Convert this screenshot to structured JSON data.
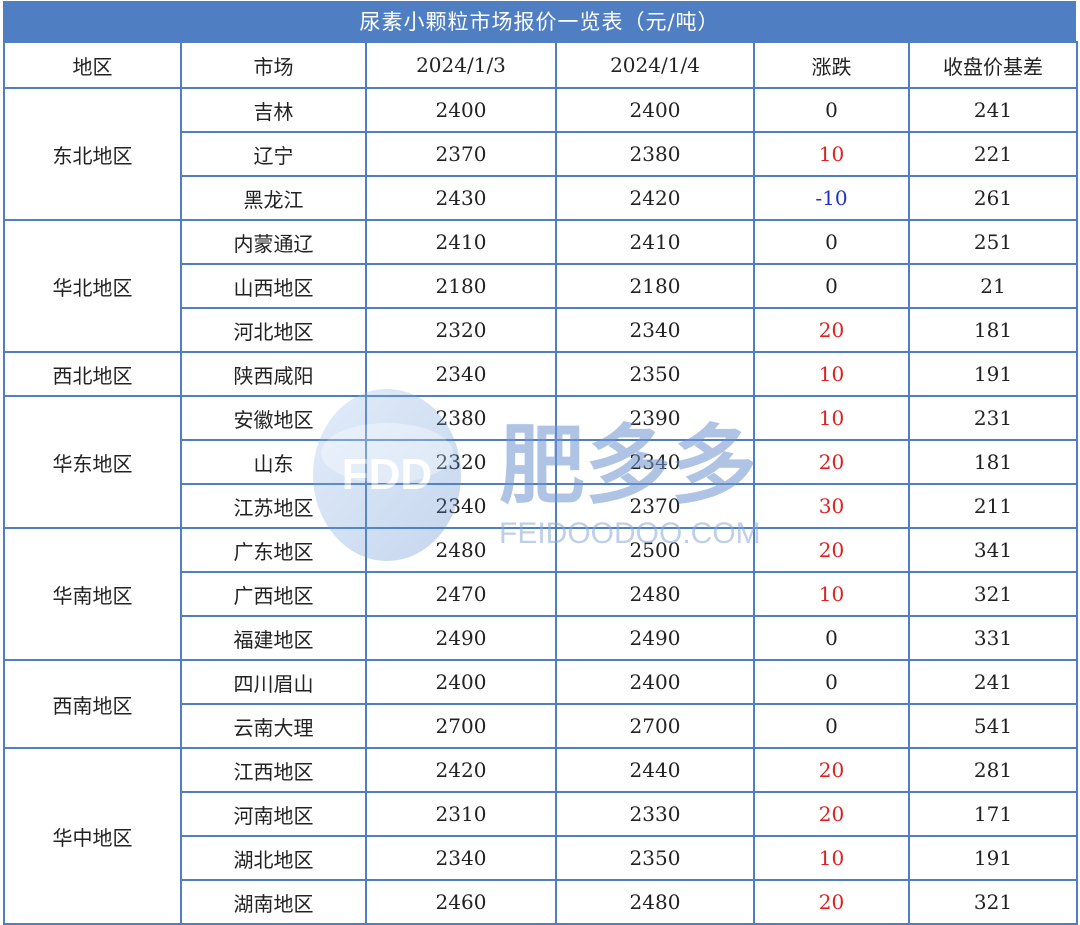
{
  "title": "尿素小颗粒市场报价一览表（元/吨）",
  "headers": [
    "地区",
    "市场",
    "2024/1/3",
    "2024/1/4",
    "涨跌",
    "收盘价基差"
  ],
  "groups": [
    {
      "region": "东北地区",
      "rows": [
        {
          "market": "吉林",
          "d1": "2400",
          "d2": "2400",
          "change": "0",
          "basis": "241"
        },
        {
          "market": "辽宁",
          "d1": "2370",
          "d2": "2380",
          "change": "10",
          "basis": "221"
        },
        {
          "market": "黑龙江",
          "d1": "2430",
          "d2": "2420",
          "change": "-10",
          "basis": "261"
        }
      ]
    },
    {
      "region": "华北地区",
      "rows": [
        {
          "market": "内蒙通辽",
          "d1": "2410",
          "d2": "2410",
          "change": "0",
          "basis": "251"
        },
        {
          "market": "山西地区",
          "d1": "2180",
          "d2": "2180",
          "change": "0",
          "basis": "21"
        },
        {
          "market": "河北地区",
          "d1": "2320",
          "d2": "2340",
          "change": "20",
          "basis": "181"
        }
      ]
    },
    {
      "region": "西北地区",
      "rows": [
        {
          "market": "陕西咸阳",
          "d1": "2340",
          "d2": "2350",
          "change": "10",
          "basis": "191"
        }
      ]
    },
    {
      "region": "华东地区",
      "rows": [
        {
          "market": "安徽地区",
          "d1": "2380",
          "d2": "2390",
          "change": "10",
          "basis": "231"
        },
        {
          "market": "山东",
          "d1": "2320",
          "d2": "2340",
          "change": "20",
          "basis": "181"
        },
        {
          "market": "江苏地区",
          "d1": "2340",
          "d2": "2370",
          "change": "30",
          "basis": "211"
        }
      ]
    },
    {
      "region": "华南地区",
      "rows": [
        {
          "market": "广东地区",
          "d1": "2480",
          "d2": "2500",
          "change": "20",
          "basis": "341"
        },
        {
          "market": "广西地区",
          "d1": "2470",
          "d2": "2480",
          "change": "10",
          "basis": "321"
        },
        {
          "market": "福建地区",
          "d1": "2490",
          "d2": "2490",
          "change": "0",
          "basis": "331"
        }
      ]
    },
    {
      "region": "西南地区",
      "rows": [
        {
          "market": "四川眉山",
          "d1": "2400",
          "d2": "2400",
          "change": "0",
          "basis": "241"
        },
        {
          "market": "云南大理",
          "d1": "2700",
          "d2": "2700",
          "change": "0",
          "basis": "541"
        }
      ]
    },
    {
      "region": "华中地区",
      "rows": [
        {
          "market": "江西地区",
          "d1": "2420",
          "d2": "2440",
          "change": "20",
          "basis": "281"
        },
        {
          "market": "河南地区",
          "d1": "2310",
          "d2": "2330",
          "change": "20",
          "basis": "171"
        },
        {
          "market": "湖北地区",
          "d1": "2340",
          "d2": "2350",
          "change": "10",
          "basis": "191"
        },
        {
          "market": "湖南地区",
          "d1": "2460",
          "d2": "2480",
          "change": "20",
          "basis": "321"
        }
      ]
    }
  ],
  "watermark": {
    "logo_text": "FDD",
    "brand": "肥多多",
    "site": "FEIDOODOO.COM"
  },
  "colors": {
    "border": "#4f7fc2",
    "header_bg": "#4f7fc2",
    "up": "#e02020",
    "down": "#2230c8"
  }
}
